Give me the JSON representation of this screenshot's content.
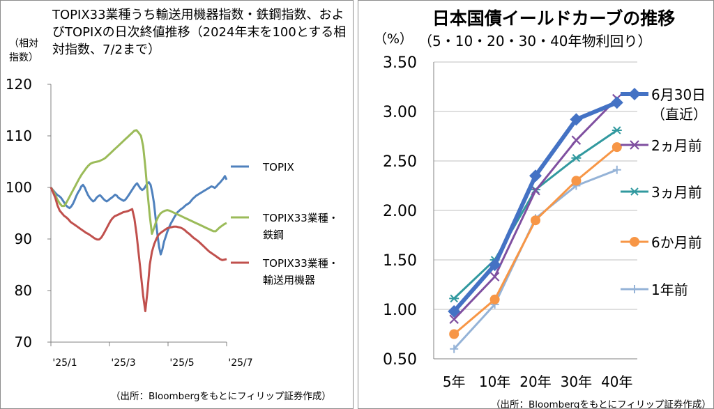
{
  "left_panel": {
    "title": "TOPIX33業種うち輸送用機器指数・鉄鋼指数、およびTOPIXの日次終値推移（2024年末を100とする相対指数、7/2まで）",
    "ylabel": "（相対指数）",
    "source": "（出所：Bloombergをもとにフィリップ証券作成）"
  },
  "right_panel": {
    "title": "日本国債イールドカーブの推移",
    "subtitle": "（5・10・20・30・40年物利回り）",
    "ylabel": "（%）",
    "source": "（出所：Bloombergをもとにフィリップ証券作成）"
  },
  "chart_data": [
    {
      "type": "line",
      "ylim": [
        70,
        120
      ],
      "yticks": [
        "70",
        "80",
        "90",
        "100",
        "110",
        "120"
      ],
      "xticks": [
        "'25/1",
        "'25/3",
        "'25/5",
        "'25/7"
      ],
      "grid": false,
      "legend": "right",
      "series": [
        {
          "name": "TOPIX",
          "color": "#4f81bd",
          "values": [
            100,
            99.6,
            99.2,
            98.8,
            98.5,
            98.3,
            98,
            97.5,
            97,
            96.5,
            96.2,
            96,
            96.3,
            96.8,
            97.5,
            98.3,
            99,
            99.5,
            100.2,
            100.5,
            100,
            99.2,
            98.5,
            98,
            97.6,
            97.3,
            97.5,
            98,
            98.3,
            98.5,
            98.2,
            97.8,
            97.5,
            97.3,
            97.5,
            97.8,
            98,
            98.3,
            98.6,
            98.4,
            98,
            97.8,
            97.6,
            97.4,
            97.6,
            98,
            98.5,
            99,
            99.5,
            100,
            100.5,
            100.8,
            100.3,
            99.8,
            99.5,
            99.7,
            100.2,
            100.8,
            101,
            100.5,
            99,
            97,
            94,
            91,
            88.5,
            87,
            88,
            89.5,
            90.5,
            91.5,
            92.3,
            93,
            93.6,
            94.2,
            94.7,
            95.2,
            95.5,
            95.8,
            96,
            96.3,
            96.6,
            96.8,
            97,
            97.4,
            97.8,
            98.1,
            98.4,
            98.6,
            98.8,
            99,
            99.2,
            99.4,
            99.6,
            99.8,
            100,
            100.2,
            100.1,
            99.9,
            100.2,
            100.6,
            100.9,
            101.3,
            101.7,
            102.2,
            101.5
          ]
        },
        {
          "name": "TOPIX33業種・鉄鋼",
          "color": "#9bbb59",
          "values": [
            100,
            99.3,
            98.5,
            97.6,
            96.9,
            96.4,
            96.4,
            97,
            97.8,
            98.6,
            99.4,
            100.2,
            101,
            101.8,
            102.5,
            103.1,
            103.7,
            104.2,
            104.6,
            104.8,
            104.9,
            105,
            105.1,
            105.3,
            105.5,
            105.8,
            106.2,
            106.6,
            107,
            107.4,
            107.8,
            108.2,
            108.6,
            109,
            109.4,
            109.8,
            110.2,
            110.6,
            111,
            111.1,
            110.6,
            110,
            108,
            104,
            99,
            94.5,
            91,
            92.2,
            93.5,
            94.4,
            95,
            95.3,
            95.5,
            95.6,
            95.5,
            95.3,
            95.1,
            94.9,
            94.7,
            94.5,
            94.3,
            94.1,
            93.9,
            93.7,
            93.5,
            93.3,
            93.1,
            92.9,
            92.7,
            92.5,
            92.3,
            92.1,
            91.9,
            91.7,
            91.5,
            91.5,
            91.9,
            92.3,
            92.6,
            92.9,
            93.1
          ]
        },
        {
          "name": "TOPIX33業種・輸送用機器",
          "color": "#c0504d",
          "values": [
            100,
            99,
            98,
            96.5,
            95.5,
            95,
            94.5,
            94.2,
            93.8,
            93.3,
            93,
            92.7,
            92.4,
            92.1,
            91.8,
            91.5,
            91.2,
            91,
            90.7,
            90.4,
            90.1,
            89.9,
            89.9,
            90.3,
            91,
            91.8,
            92.6,
            93.4,
            94,
            94.4,
            94.6,
            94.8,
            95,
            95.2,
            95.3,
            95.4,
            95.6,
            95.8,
            94,
            91,
            87,
            83,
            79,
            76,
            80,
            85,
            87.5,
            89,
            90,
            90.8,
            91.2,
            91.5,
            91.8,
            92.1,
            92.2,
            92.3,
            92.4,
            92.4,
            92.3,
            92.2,
            92,
            91.7,
            91.3,
            91,
            90.6,
            90.2,
            89.9,
            89.6,
            89.2,
            88.8,
            88.4,
            88,
            87.6,
            87.3,
            87,
            86.7,
            86.4,
            86.1,
            85.9,
            86,
            86.1
          ]
        }
      ]
    },
    {
      "type": "line",
      "categories": [
        "5年",
        "10年",
        "20年",
        "30年",
        "40年"
      ],
      "ylim": [
        0.5,
        3.5
      ],
      "yticks": [
        "0.50",
        "1.00",
        "1.50",
        "2.00",
        "2.50",
        "3.00",
        "3.50"
      ],
      "grid": true,
      "legend": "right",
      "series": [
        {
          "name": "6月30日（直近）",
          "color": "#4472c4",
          "marker": "diamond",
          "values": [
            0.98,
            1.45,
            2.35,
            2.92,
            3.09
          ]
        },
        {
          "name": "2ヵ月前",
          "color": "#7f4fa0",
          "marker": "x",
          "values": [
            0.9,
            1.33,
            2.2,
            2.71,
            3.13
          ]
        },
        {
          "name": "3ヵ月前",
          "color": "#31999f",
          "marker": "star",
          "values": [
            1.11,
            1.5,
            2.21,
            2.53,
            2.81
          ]
        },
        {
          "name": "6か月前",
          "color": "#f79646",
          "marker": "circle",
          "values": [
            0.75,
            1.1,
            1.9,
            2.3,
            2.64
          ]
        },
        {
          "name": "1年前",
          "color": "#95b3d7",
          "marker": "plus",
          "values": [
            0.6,
            1.05,
            1.92,
            2.25,
            2.41
          ]
        }
      ]
    }
  ]
}
